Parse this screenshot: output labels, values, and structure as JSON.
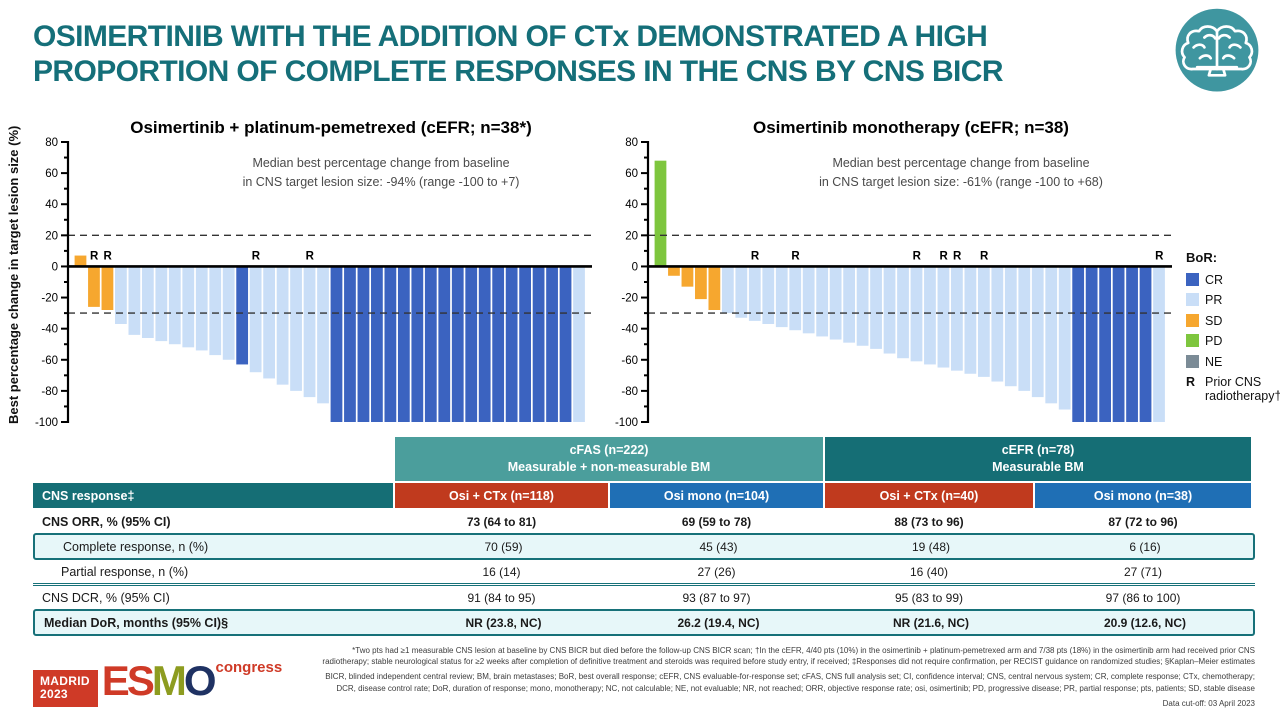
{
  "slide": {
    "title_line1": "OSIMERTINIB WITH THE ADDITION OF CTx DEMONSTRATED A HIGH",
    "title_line2": "PROPORTION OF COMPLETE RESPONSES IN THE CNS BY CNS BICR"
  },
  "y_axis_label": "Best percentage change in target lesion size (%)",
  "legend": {
    "title": "BoR:",
    "colors": {
      "CR": "#3b63c0",
      "PR": "#c9def7",
      "SD": "#f6a72f",
      "PD": "#7ec63e",
      "NE": "#7b8b96"
    },
    "items": [
      {
        "label": "CR",
        "swatch": "CR"
      },
      {
        "label": "PR",
        "swatch": "PR"
      },
      {
        "label": "SD",
        "swatch": "SD"
      },
      {
        "label": "PD",
        "swatch": "PD"
      },
      {
        "label": "NE",
        "swatch": "NE"
      },
      {
        "label": "Prior CNS radiotherapy†",
        "symbol": "R"
      }
    ]
  },
  "chart_data": [
    {
      "type": "bar",
      "subtype": "waterfall",
      "title": "Osimertinib + platinum-pemetrexed (cEFR; n=38*)",
      "annotation_line1": "Median best percentage change from baseline",
      "annotation_line2": "in CNS target lesion size: -94% (range -100 to +7)",
      "ylabel": "Best percentage change in target lesion size (%)",
      "ylim": [
        -100,
        80
      ],
      "yticks": [
        80,
        60,
        40,
        20,
        0,
        -20,
        -40,
        -60,
        -80,
        -100
      ],
      "reference_lines": [
        20,
        -30
      ],
      "values": [
        7,
        -26,
        -28,
        -37,
        -44,
        -46,
        -48,
        -50,
        -52,
        -54,
        -57,
        -60,
        -63,
        -68,
        -72,
        -76,
        -80,
        -84,
        -88,
        -100,
        -100,
        -100,
        -100,
        -100,
        -100,
        -100,
        -100,
        -100,
        -100,
        -100,
        -100,
        -100,
        -100,
        -100,
        -100,
        -100,
        -100,
        -100
      ],
      "bor": [
        "SD",
        "SD",
        "SD",
        "PR",
        "PR",
        "PR",
        "PR",
        "PR",
        "PR",
        "PR",
        "PR",
        "PR",
        "CR",
        "PR",
        "PR",
        "PR",
        "PR",
        "PR",
        "PR",
        "CR",
        "CR",
        "CR",
        "CR",
        "CR",
        "CR",
        "CR",
        "CR",
        "CR",
        "CR",
        "CR",
        "CR",
        "CR",
        "CR",
        "CR",
        "CR",
        "CR",
        "CR",
        "PR"
      ],
      "prior_rt_bars": [
        2,
        3,
        14,
        18
      ]
    },
    {
      "type": "bar",
      "subtype": "waterfall",
      "title": "Osimertinib monotherapy (cEFR; n=38)",
      "annotation_line1": "Median best percentage change from baseline",
      "annotation_line2": "in CNS target lesion size: -61% (range -100 to +68)",
      "ylabel": "Best percentage change in target lesion size (%)",
      "ylim": [
        -100,
        80
      ],
      "yticks": [
        80,
        60,
        40,
        20,
        0,
        -20,
        -40,
        -60,
        -80,
        -100
      ],
      "reference_lines": [
        20,
        -30
      ],
      "values": [
        68,
        -6,
        -13,
        -21,
        -28,
        -30,
        -33,
        -35,
        -37,
        -39,
        -41,
        -43,
        -45,
        -47,
        -49,
        -51,
        -53,
        -56,
        -59,
        -61,
        -63,
        -65,
        -67,
        -69,
        -71,
        -74,
        -77,
        -80,
        -84,
        -88,
        -92,
        -100,
        -100,
        -100,
        -100,
        -100,
        -100,
        -100
      ],
      "bor": [
        "PD",
        "SD",
        "SD",
        "SD",
        "SD",
        "PR",
        "PR",
        "PR",
        "PR",
        "PR",
        "PR",
        "PR",
        "PR",
        "PR",
        "PR",
        "PR",
        "PR",
        "PR",
        "PR",
        "PR",
        "PR",
        "PR",
        "PR",
        "PR",
        "PR",
        "PR",
        "PR",
        "PR",
        "PR",
        "PR",
        "PR",
        "CR",
        "CR",
        "CR",
        "CR",
        "CR",
        "CR",
        "PR"
      ],
      "prior_rt_bars": [
        8,
        11,
        20,
        22,
        23,
        25,
        38
      ]
    }
  ],
  "table": {
    "row_header_label": "CNS response‡",
    "header_colors": {
      "row_header": "#156e75",
      "group_cfas": "#4b9e9c",
      "group_cefr": "#156e75",
      "osi_ctx": "#c03a1e",
      "osi_mono": "#1f6fb5"
    },
    "groups": [
      {
        "line1": "cFAS (n=222)",
        "line2": "Measurable + non-measurable BM",
        "color_key": "group_cfas"
      },
      {
        "line1": "cEFR (n=78)",
        "line2": "Measurable BM",
        "color_key": "group_cefr"
      }
    ],
    "columns": [
      {
        "label": "Osi + CTx (n=118)",
        "color_key": "osi_ctx"
      },
      {
        "label": "Osi mono (n=104)",
        "color_key": "osi_mono"
      },
      {
        "label": "Osi + CTx (n=40)",
        "color_key": "osi_ctx"
      },
      {
        "label": "Osi mono (n=38)",
        "color_key": "osi_mono"
      }
    ],
    "rows": [
      {
        "label": "CNS ORR, % (95% CI)",
        "values": [
          "73 (64 to 81)",
          "69 (59 to 78)",
          "88 (73 to 96)",
          "87 (72 to 96)"
        ],
        "highlight": false,
        "indent": false,
        "bold": true,
        "separator_after": false
      },
      {
        "label": "Complete response, n (%)",
        "values": [
          "70 (59)",
          "45 (43)",
          "19 (48)",
          "6 (16)"
        ],
        "highlight": true,
        "indent": true,
        "bold": false,
        "separator_after": false
      },
      {
        "label": "Partial response, n (%)",
        "values": [
          "16 (14)",
          "27 (26)",
          "16 (40)",
          "27 (71)"
        ],
        "highlight": false,
        "indent": true,
        "bold": false,
        "separator_after": true
      },
      {
        "label": "CNS DCR, % (95% CI)",
        "values": [
          "91 (84 to 95)",
          "93 (87 to 97)",
          "95 (83 to 99)",
          "97 (86 to 100)"
        ],
        "highlight": false,
        "indent": false,
        "bold": false,
        "separator_after": false
      },
      {
        "label": "Median DoR, months (95% CI)§",
        "values": [
          "NR (23.8, NC)",
          "26.2 (19.4, NC)",
          "NR (21.6, NC)",
          "20.9 (12.6, NC)"
        ],
        "highlight": true,
        "indent": false,
        "bold": true,
        "separator_after": false
      }
    ]
  },
  "footnotes": {
    "line1": "*Two pts had ≥1 measurable CNS lesion at baseline by CNS BICR but died before the follow-up CNS BICR scan; †In the cEFR, 4/40 pts (10%) in the osimertinib + platinum-pemetrexed arm and 7/38 pts (18%) in the osimertinib arm had received prior CNS radiotherapy; stable neurological status for ≥2 weeks after completion of definitive treatment and steroids was required before study entry, if received; ‡Responses did not require confirmation, per RECIST guidance on randomized studies; §Kaplan–Meier estimates",
    "line2": "BICR, blinded independent central review; BM, brain metastases; BoR, best overall response; cEFR, CNS evaluable-for-response set; cFAS, CNS full analysis set; CI, confidence interval; CNS, central nervous system; CR, complete response; CTx, chemotherapy; DCR, disease control rate; DoR, duration of response; mono, monotherapy; NC, not calculable; NE, not evaluable; NR, not reached; ORR, objective response rate; osi, osimertinib; PD, progressive disease; PR, partial response; pts, patients; SD, stable disease",
    "cutoff": "Data cut-off: 03 April 2023"
  },
  "footer_logo": {
    "venue": "MADRID",
    "year": "2023",
    "org_letters": [
      "E",
      "S",
      "M",
      "O"
    ],
    "suffix": "congress"
  }
}
